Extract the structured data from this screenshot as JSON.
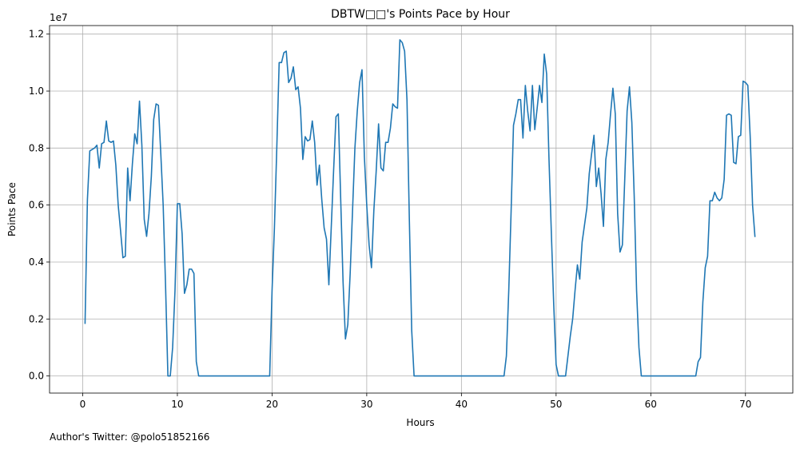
{
  "chart_data": {
    "type": "line",
    "title": "DBTW□□'s Points Pace by Hour",
    "xlabel": "Hours",
    "ylabel": "Points Pace",
    "y_offset_label": "1e7",
    "xlim": [
      -3.5,
      75
    ],
    "ylim": [
      -600000,
      12300000
    ],
    "x_ticks": [
      0,
      10,
      20,
      30,
      40,
      50,
      60,
      70
    ],
    "x_tick_labels": [
      "0",
      "10",
      "20",
      "30",
      "40",
      "50",
      "60",
      "70"
    ],
    "y_ticks": [
      0,
      2000000,
      4000000,
      6000000,
      8000000,
      10000000,
      12000000
    ],
    "y_tick_labels": [
      "0.0",
      "0.2",
      "0.4",
      "0.6",
      "0.8",
      "1.0",
      "1.2"
    ],
    "grid": true,
    "series": [
      {
        "color": "#1f77b4",
        "points": [
          [
            0.25,
            1850000
          ],
          [
            0.5,
            6200000
          ],
          [
            0.75,
            7900000
          ],
          [
            1.0,
            7950000
          ],
          [
            1.25,
            8000000
          ],
          [
            1.5,
            8100000
          ],
          [
            1.75,
            7300000
          ],
          [
            2.0,
            8150000
          ],
          [
            2.25,
            8200000
          ],
          [
            2.5,
            8950000
          ],
          [
            2.75,
            8250000
          ],
          [
            3.0,
            8200000
          ],
          [
            3.25,
            8250000
          ],
          [
            3.5,
            7400000
          ],
          [
            3.75,
            6000000
          ],
          [
            4.0,
            5100000
          ],
          [
            4.25,
            4150000
          ],
          [
            4.5,
            4200000
          ],
          [
            4.75,
            7300000
          ],
          [
            5.0,
            6150000
          ],
          [
            5.25,
            7450000
          ],
          [
            5.5,
            8500000
          ],
          [
            5.75,
            8150000
          ],
          [
            6.0,
            9650000
          ],
          [
            6.25,
            8100000
          ],
          [
            6.5,
            5500000
          ],
          [
            6.75,
            4900000
          ],
          [
            7.0,
            5700000
          ],
          [
            7.25,
            7000000
          ],
          [
            7.5,
            9000000
          ],
          [
            7.75,
            9550000
          ],
          [
            8.0,
            9500000
          ],
          [
            8.25,
            7800000
          ],
          [
            8.5,
            6000000
          ],
          [
            8.75,
            3200000
          ],
          [
            9.0,
            0
          ],
          [
            9.25,
            0
          ],
          [
            9.5,
            1000000
          ],
          [
            9.75,
            3000000
          ],
          [
            10.0,
            6050000
          ],
          [
            10.25,
            6050000
          ],
          [
            10.5,
            5000000
          ],
          [
            10.75,
            2900000
          ],
          [
            11.0,
            3200000
          ],
          [
            11.25,
            3750000
          ],
          [
            11.5,
            3750000
          ],
          [
            11.75,
            3600000
          ],
          [
            12.0,
            500000
          ],
          [
            12.25,
            0
          ],
          [
            12.5,
            0
          ],
          [
            13.0,
            0
          ],
          [
            14.0,
            0
          ],
          [
            15.0,
            0
          ],
          [
            16.0,
            0
          ],
          [
            17.0,
            0
          ],
          [
            18.0,
            0
          ],
          [
            19.0,
            0
          ],
          [
            19.75,
            0
          ],
          [
            20.0,
            3000000
          ],
          [
            20.25,
            5200000
          ],
          [
            20.5,
            8000000
          ],
          [
            20.75,
            11000000
          ],
          [
            21.0,
            11000000
          ],
          [
            21.25,
            11350000
          ],
          [
            21.5,
            11400000
          ],
          [
            21.75,
            10300000
          ],
          [
            22.0,
            10450000
          ],
          [
            22.25,
            10850000
          ],
          [
            22.5,
            10050000
          ],
          [
            22.75,
            10150000
          ],
          [
            23.0,
            9400000
          ],
          [
            23.25,
            7600000
          ],
          [
            23.5,
            8400000
          ],
          [
            23.75,
            8250000
          ],
          [
            24.0,
            8300000
          ],
          [
            24.25,
            8950000
          ],
          [
            24.5,
            8200000
          ],
          [
            24.75,
            6700000
          ],
          [
            25.0,
            7400000
          ],
          [
            25.25,
            6200000
          ],
          [
            25.5,
            5200000
          ],
          [
            25.75,
            4800000
          ],
          [
            26.0,
            3200000
          ],
          [
            26.25,
            5200000
          ],
          [
            26.5,
            7200000
          ],
          [
            26.75,
            9100000
          ],
          [
            27.0,
            9200000
          ],
          [
            27.25,
            6200000
          ],
          [
            27.5,
            3300000
          ],
          [
            27.75,
            1300000
          ],
          [
            28.0,
            1800000
          ],
          [
            28.25,
            3600000
          ],
          [
            28.5,
            5800000
          ],
          [
            28.75,
            8000000
          ],
          [
            29.0,
            9300000
          ],
          [
            29.25,
            10300000
          ],
          [
            29.5,
            10750000
          ],
          [
            29.75,
            7700000
          ],
          [
            30.0,
            6000000
          ],
          [
            30.25,
            4600000
          ],
          [
            30.5,
            3800000
          ],
          [
            30.75,
            5800000
          ],
          [
            31.0,
            7200000
          ],
          [
            31.25,
            8850000
          ],
          [
            31.5,
            7300000
          ],
          [
            31.75,
            7200000
          ],
          [
            32.0,
            8200000
          ],
          [
            32.25,
            8200000
          ],
          [
            32.5,
            8700000
          ],
          [
            32.75,
            9550000
          ],
          [
            33.0,
            9450000
          ],
          [
            33.25,
            9400000
          ],
          [
            33.5,
            11800000
          ],
          [
            33.75,
            11700000
          ],
          [
            34.0,
            11400000
          ],
          [
            34.25,
            9700000
          ],
          [
            34.5,
            5500000
          ],
          [
            34.75,
            1600000
          ],
          [
            35.0,
            0
          ],
          [
            36.0,
            0
          ],
          [
            37.0,
            0
          ],
          [
            38.0,
            0
          ],
          [
            39.0,
            0
          ],
          [
            40.0,
            0
          ],
          [
            41.0,
            0
          ],
          [
            42.0,
            0
          ],
          [
            43.0,
            0
          ],
          [
            44.0,
            0
          ],
          [
            44.5,
            0
          ],
          [
            44.75,
            700000
          ],
          [
            45.0,
            3000000
          ],
          [
            45.25,
            5800000
          ],
          [
            45.5,
            8800000
          ],
          [
            45.75,
            9200000
          ],
          [
            46.0,
            9700000
          ],
          [
            46.25,
            9700000
          ],
          [
            46.5,
            8350000
          ],
          [
            46.75,
            10200000
          ],
          [
            47.0,
            9300000
          ],
          [
            47.25,
            8600000
          ],
          [
            47.5,
            10200000
          ],
          [
            47.75,
            8650000
          ],
          [
            48.0,
            9400000
          ],
          [
            48.25,
            10200000
          ],
          [
            48.5,
            9600000
          ],
          [
            48.75,
            11300000
          ],
          [
            49.0,
            10600000
          ],
          [
            49.25,
            7600000
          ],
          [
            49.5,
            5000000
          ],
          [
            49.75,
            2500000
          ],
          [
            50.0,
            400000
          ],
          [
            50.25,
            0
          ],
          [
            50.5,
            0
          ],
          [
            51.0,
            0
          ],
          [
            51.25,
            700000
          ],
          [
            51.5,
            1400000
          ],
          [
            51.75,
            2000000
          ],
          [
            52.0,
            3000000
          ],
          [
            52.25,
            3900000
          ],
          [
            52.5,
            3400000
          ],
          [
            52.75,
            4700000
          ],
          [
            53.0,
            5300000
          ],
          [
            53.25,
            5900000
          ],
          [
            53.5,
            7100000
          ],
          [
            53.75,
            7800000
          ],
          [
            54.0,
            8450000
          ],
          [
            54.25,
            6650000
          ],
          [
            54.5,
            7300000
          ],
          [
            54.75,
            6400000
          ],
          [
            55.0,
            5250000
          ],
          [
            55.25,
            7600000
          ],
          [
            55.5,
            8200000
          ],
          [
            55.75,
            9200000
          ],
          [
            56.0,
            10100000
          ],
          [
            56.25,
            9200000
          ],
          [
            56.5,
            5700000
          ],
          [
            56.75,
            4350000
          ],
          [
            57.0,
            4600000
          ],
          [
            57.25,
            6900000
          ],
          [
            57.5,
            9300000
          ],
          [
            57.75,
            10150000
          ],
          [
            58.0,
            8900000
          ],
          [
            58.25,
            6300000
          ],
          [
            58.5,
            3000000
          ],
          [
            58.75,
            1000000
          ],
          [
            59.0,
            0
          ],
          [
            60.0,
            0
          ],
          [
            61.0,
            0
          ],
          [
            62.0,
            0
          ],
          [
            63.0,
            0
          ],
          [
            64.0,
            0
          ],
          [
            64.75,
            0
          ],
          [
            65.0,
            500000
          ],
          [
            65.25,
            650000
          ],
          [
            65.5,
            2600000
          ],
          [
            65.75,
            3800000
          ],
          [
            66.0,
            4200000
          ],
          [
            66.25,
            6150000
          ],
          [
            66.5,
            6150000
          ],
          [
            66.75,
            6450000
          ],
          [
            67.0,
            6250000
          ],
          [
            67.25,
            6150000
          ],
          [
            67.5,
            6250000
          ],
          [
            67.75,
            6900000
          ],
          [
            68.0,
            9150000
          ],
          [
            68.25,
            9200000
          ],
          [
            68.5,
            9150000
          ],
          [
            68.75,
            7500000
          ],
          [
            69.0,
            7450000
          ],
          [
            69.25,
            8400000
          ],
          [
            69.5,
            8450000
          ],
          [
            69.75,
            10350000
          ],
          [
            70.0,
            10300000
          ],
          [
            70.25,
            10200000
          ],
          [
            70.5,
            8400000
          ],
          [
            70.75,
            6000000
          ],
          [
            71.0,
            4900000
          ]
        ]
      }
    ]
  },
  "footer": {
    "author_note": "Author's Twitter: @polo51852166"
  }
}
